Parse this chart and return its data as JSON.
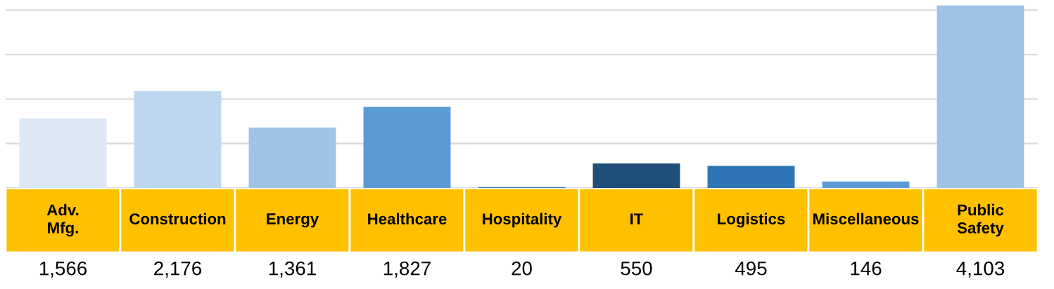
{
  "chart_data": {
    "type": "bar",
    "categories": [
      "Adv. Mfg.",
      "Construction",
      "Energy",
      "Healthcare",
      "Hospitality",
      "IT",
      "Logistics",
      "Miscellaneous",
      "Public Safety"
    ],
    "values": [
      1566,
      2176,
      1361,
      1827,
      20,
      550,
      495,
      146,
      4103
    ],
    "colors": [
      "#dde8f5",
      "#bdd7ee",
      "#9dc3e6",
      "#5b9bd5",
      "#2e75b6",
      "#1f4e79",
      "#2e75b6",
      "#5b9bd5",
      "#9dc3e6"
    ],
    "value_labels": [
      "1,566",
      "2,176",
      "1,361",
      "1,827",
      "20",
      "550",
      "495",
      "146",
      "4,103"
    ],
    "yticks": [
      {
        "value": 0,
        "label": null
      },
      {
        "value": 1000,
        "label": null
      },
      {
        "value": 2000,
        "label": null
      },
      {
        "value": 3000,
        "label": null
      },
      {
        "value": 4000,
        "label": null
      }
    ],
    "grid": "y"
  }
}
